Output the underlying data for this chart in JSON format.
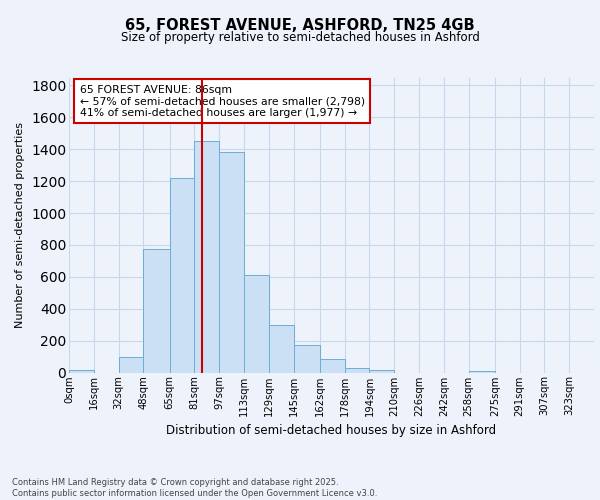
{
  "title1": "65, FOREST AVENUE, ASHFORD, TN25 4GB",
  "title2": "Size of property relative to semi-detached houses in Ashford",
  "xlabel": "Distribution of semi-detached houses by size in Ashford",
  "ylabel": "Number of semi-detached properties",
  "bin_labels": [
    "0sqm",
    "16sqm",
    "32sqm",
    "48sqm",
    "65sqm",
    "81sqm",
    "97sqm",
    "113sqm",
    "129sqm",
    "145sqm",
    "162sqm",
    "178sqm",
    "194sqm",
    "210sqm",
    "226sqm",
    "242sqm",
    "258sqm",
    "275sqm",
    "291sqm",
    "307sqm",
    "323sqm"
  ],
  "bin_edges": [
    0,
    16,
    32,
    48,
    65,
    81,
    97,
    113,
    129,
    145,
    162,
    178,
    194,
    210,
    226,
    242,
    258,
    275,
    291,
    307,
    323
  ],
  "counts": [
    15,
    0,
    100,
    775,
    1220,
    1450,
    1380,
    610,
    300,
    170,
    85,
    30,
    18,
    0,
    0,
    0,
    10,
    0,
    0,
    0,
    0
  ],
  "bar_facecolor": "#cce0f5",
  "bar_edgecolor": "#6aaed6",
  "grid_color": "#c8d8ea",
  "property_value": 86,
  "vline_color": "#cc0000",
  "annotation_text": "65 FOREST AVENUE: 86sqm\n← 57% of semi-detached houses are smaller (2,798)\n41% of semi-detached houses are larger (1,977) →",
  "annotation_box_edgecolor": "#cc0000",
  "annotation_box_facecolor": "#ffffff",
  "footer_text": "Contains HM Land Registry data © Crown copyright and database right 2025.\nContains public sector information licensed under the Open Government Licence v3.0.",
  "ylim": [
    0,
    1850
  ],
  "yticks": [
    0,
    200,
    400,
    600,
    800,
    1000,
    1200,
    1400,
    1600,
    1800
  ],
  "background_color": "#eef3fb"
}
